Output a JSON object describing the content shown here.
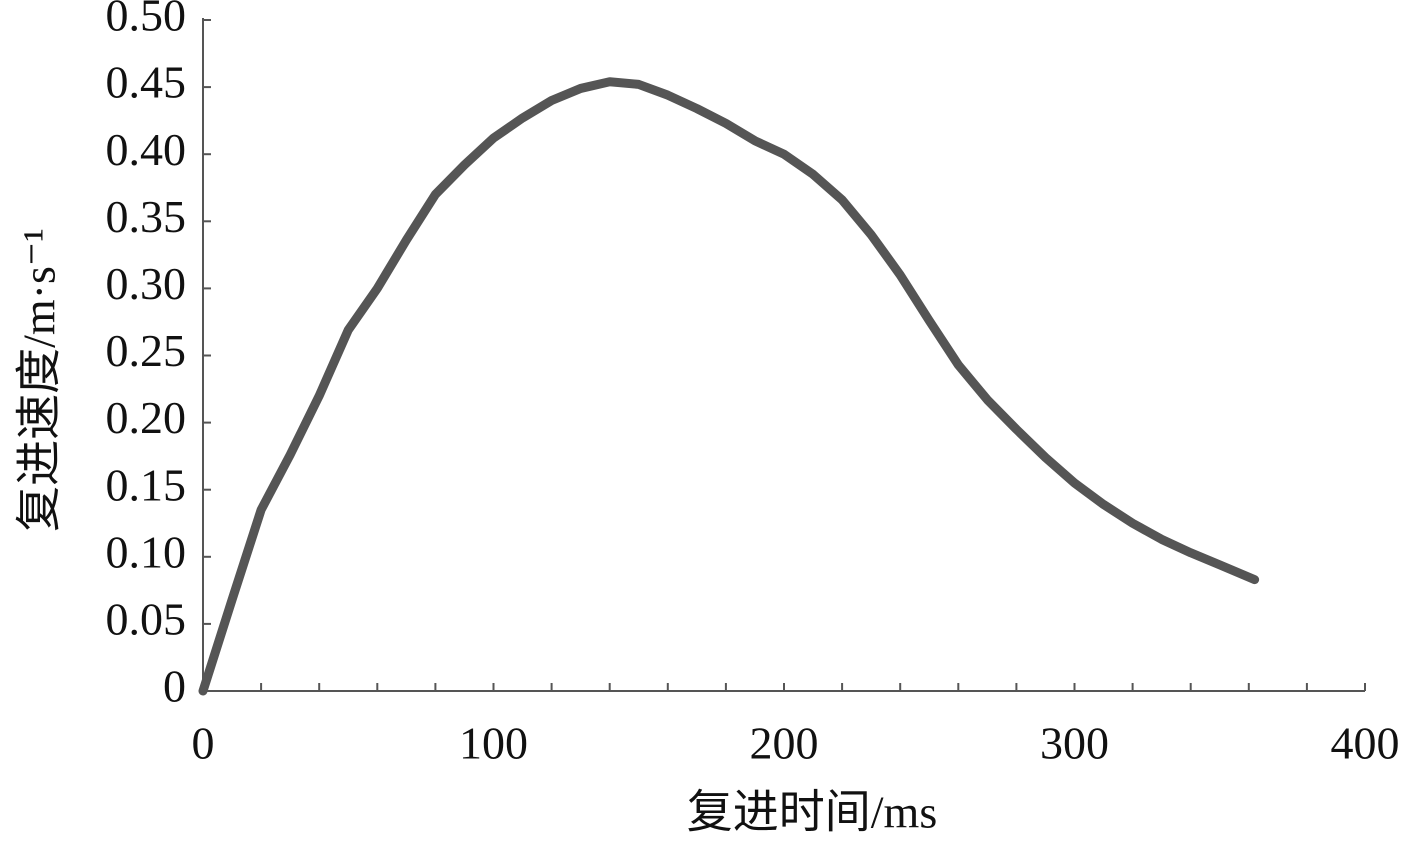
{
  "chart_data": {
    "type": "line",
    "xlabel": "复进时间/ms",
    "ylabel": "复进速度/m·s⁻¹",
    "x": [
      0,
      10,
      20,
      30,
      40,
      50,
      60,
      70,
      80,
      90,
      100,
      110,
      120,
      130,
      140,
      150,
      160,
      170,
      180,
      190,
      200,
      210,
      220,
      230,
      240,
      250,
      260,
      270,
      280,
      290,
      300,
      310,
      320,
      330,
      340,
      350,
      362
    ],
    "series": [
      {
        "name": "复进速度",
        "color": "#555555",
        "values": [
          0,
          0.068,
          0.135,
          0.176,
          0.22,
          0.269,
          0.3,
          0.336,
          0.37,
          0.392,
          0.412,
          0.427,
          0.44,
          0.449,
          0.454,
          0.452,
          0.444,
          0.434,
          0.423,
          0.41,
          0.4,
          0.385,
          0.366,
          0.34,
          0.31,
          0.276,
          0.243,
          0.217,
          0.195,
          0.174,
          0.155,
          0.139,
          0.125,
          0.113,
          0.103,
          0.094,
          0.083
        ]
      }
    ],
    "xlim": [
      0,
      400
    ],
    "xticks": [
      0,
      100,
      200,
      300,
      400
    ],
    "xminorticks": [
      20,
      40,
      60,
      80,
      120,
      140,
      160,
      180,
      220,
      240,
      260,
      280,
      320,
      340,
      360,
      380
    ],
    "ylim": [
      0,
      0.5
    ],
    "yticks": [
      0,
      0.05,
      {
        "value": 0.1,
        "label": "0.10"
      },
      0.15,
      {
        "value": 0.2,
        "label": "0.20"
      },
      0.25,
      {
        "value": 0.3,
        "label": "0.30"
      },
      0.35,
      {
        "value": 0.4,
        "label": "0.40"
      },
      0.45,
      {
        "value": 0.5,
        "label": "0.50"
      }
    ],
    "grid": false
  }
}
